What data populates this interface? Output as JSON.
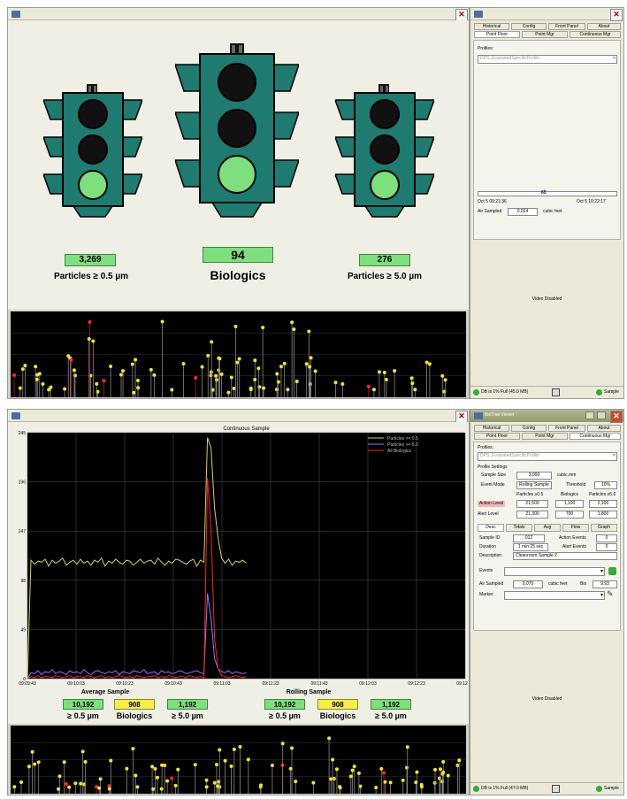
{
  "top": {
    "lights": {
      "left_value": "3,269",
      "left_label": "Particles ≥ 0.5 µm",
      "center_value": "94",
      "center_label": "Biologics",
      "right_value": "276",
      "right_label": "Particles ≥ 5.0 µm",
      "colors": {
        "housing": "#1f7a70",
        "off": "#111111",
        "green": "#7ddf7d"
      }
    },
    "side": {
      "tabs_row1": [
        "Historical",
        "Config",
        "Front Panel",
        "About"
      ],
      "tabs_row2": [
        "Point Floor",
        "Point Mgr",
        "Continuous Mgr"
      ],
      "profiles_label": "Profiles:",
      "profile_value": "DPS_EvaluatedSpecificProfile",
      "slider_value": "65",
      "time_start": "Oct 5 09:21:36",
      "time_end": "Oct 5 10:22:17",
      "air_sampled_label": "Air Sampled",
      "air_sampled_value": "0.024",
      "air_sampled_unit": "cubic feet",
      "video": "Video Disabled",
      "status_text": "DB is 1% Full (45.0 MB)",
      "status_sample": "Sample"
    }
  },
  "bottom": {
    "chart_title": "Continuous Sample",
    "side": {
      "window_title": "BioTrak Viewer",
      "tabs_row1": [
        "Historical",
        "Config",
        "Front Panel",
        "About"
      ],
      "tabs_row2": [
        "Point Floor",
        "Point Mgr",
        "Continuous Mgr"
      ],
      "profiles_label": "Profiles:",
      "profile_value": "DPS_EvaluatedSpecificProfile",
      "profile_settings": "Profile Settings",
      "sample_size_label": "Sample Size",
      "sample_size_value": "3.000",
      "sample_size_unit": "cubic.mm",
      "event_mode_label": "Event Mode",
      "event_mode_value": "Rolling Sample",
      "threshold_label": "Threshold",
      "threshold_value": "10%",
      "col_heads": [
        "Particles ≥0.5",
        "Biologics",
        "Particles ≥5.0"
      ],
      "action_label": "Action Level",
      "action_values": [
        "21,500",
        "1,100",
        "2,100"
      ],
      "alert_label": "Alert Level",
      "alert_values": [
        "21,300",
        "700",
        "1,800"
      ],
      "subtabs": [
        "Desc",
        "Totals",
        "Avg",
        "Flow",
        "Graph"
      ],
      "sample_id_label": "Sample ID",
      "sample_id_value": "012",
      "action_events_label": "Action Events",
      "action_events_value": "0",
      "duration_label": "Duration",
      "duration_value": "1 min 25 sec",
      "alert_events_label": "Alert Events",
      "alert_events_value": "0",
      "description_label": "Description",
      "description_value": "Cleanroom Sample 2",
      "events_label": "Events",
      "air_sampled_label": "Air Sampled",
      "air_sampled_value": "0.070",
      "air_sampled_unit": "cubic feet",
      "bio_label": "Bio",
      "bio_value": "9.93",
      "marker_label": "Marker",
      "video": "Video Disabled",
      "status_text": "DB is 1% Full (47.9 MB)",
      "status_sample": "Sample"
    },
    "average": {
      "title": "Average Sample",
      "values": [
        "10,192",
        "908",
        "1,192"
      ],
      "labels": [
        "≥ 0.5 µm",
        "Biologics",
        "≥ 5.0 µm"
      ]
    },
    "rolling": {
      "title": "Rolling Sample",
      "values": [
        "10,192",
        "908",
        "1,192"
      ],
      "labels": [
        "≥ 0.5 µm",
        "Biologics",
        "≥ 5.0 µm"
      ]
    }
  },
  "chart_data": [
    {
      "type": "line",
      "title": "Continuous Sample",
      "xlabel": "",
      "ylabel": "",
      "y_ticks": [
        "0",
        "49",
        "98",
        "147",
        "196",
        "245"
      ],
      "ylim": [
        0,
        245
      ],
      "x_ticks": [
        "09:09:43",
        "09:10:03",
        "09:10:23",
        "09:10:43",
        "09:11:03",
        "09:11:23",
        "09:11:43",
        "09:12:03",
        "09:12:23",
        "09:12:43"
      ],
      "grid": true,
      "legend_position": "top-right",
      "series": [
        {
          "name": "Particles >= 0.5",
          "color": "#d8d060",
          "values": [
            0,
            118,
            114,
            117,
            116,
            119,
            112,
            118,
            115,
            117,
            120,
            113,
            116,
            118,
            114,
            119,
            115,
            117,
            113,
            118,
            116,
            120,
            112,
            117,
            115,
            119,
            116,
            114,
            118,
            117,
            113,
            116,
            119,
            115,
            117,
            118,
            114,
            120,
            116,
            113,
            117,
            115,
            119,
            118,
            116,
            114,
            117,
            119,
            112,
            118,
            116,
            240,
            230,
            170,
            140,
            120,
            115,
            119,
            113,
            117,
            116,
            118,
            115
          ]
        },
        {
          "name": "Particles >= 5.0",
          "color": "#8a78ff",
          "values": [
            0,
            6,
            5,
            8,
            4,
            7,
            6,
            9,
            5,
            7,
            6,
            4,
            8,
            6,
            7,
            5,
            9,
            6,
            4,
            7,
            8,
            6,
            5,
            7,
            6,
            8,
            4,
            7,
            6,
            5,
            8,
            7,
            6,
            9,
            5,
            6,
            7,
            4,
            8,
            6,
            7,
            5,
            6,
            8,
            7,
            5,
            6,
            7,
            8,
            6,
            5,
            85,
            60,
            20,
            10,
            7,
            6,
            8,
            5,
            7,
            6,
            5,
            6
          ]
        },
        {
          "name": "All Biologics",
          "color": "#ff2020",
          "values": [
            0,
            2,
            1,
            3,
            1,
            2,
            2,
            1,
            3,
            2,
            1,
            2,
            3,
            1,
            2,
            2,
            1,
            3,
            2,
            1,
            2,
            3,
            1,
            2,
            1,
            2,
            3,
            2,
            1,
            2,
            1,
            3,
            2,
            1,
            2,
            2,
            3,
            1,
            2,
            1,
            3,
            2,
            1,
            2,
            2,
            1,
            3,
            2,
            1,
            2,
            1,
            200,
            150,
            40,
            10,
            3,
            2,
            1,
            2,
            3,
            2,
            1,
            2
          ]
        }
      ]
    }
  ]
}
